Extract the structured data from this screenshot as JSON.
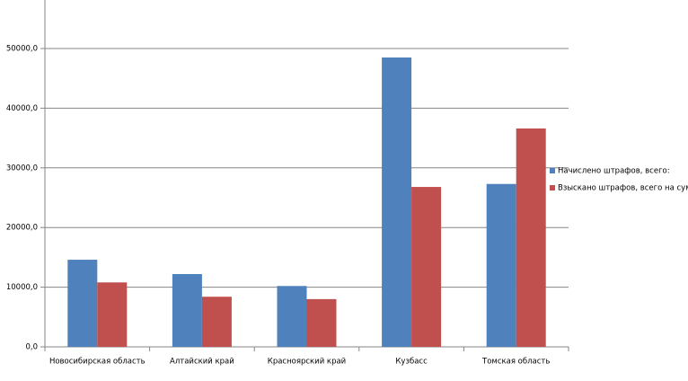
{
  "chart_data": {
    "type": "bar",
    "categories": [
      "Новосибирская область",
      "Алтайский край",
      "Красноярский край",
      "Кузбасс",
      "Томская область"
    ],
    "series": [
      {
        "name": "Начислено штрафов, всего:",
        "color": "#4f81bd",
        "values": [
          14600,
          12200,
          10200,
          48500,
          27300
        ]
      },
      {
        "name": "Взыскано штрафов, всего на сумму",
        "color": "#c0504d",
        "values": [
          10800,
          8400,
          8000,
          26800,
          36600
        ]
      }
    ],
    "ylim": [
      0,
      60000
    ],
    "yticks": [
      {
        "value": 0,
        "label": "0,0"
      },
      {
        "value": 10000,
        "label": "10000,0"
      },
      {
        "value": 20000,
        "label": "20000,0"
      },
      {
        "value": 30000,
        "label": "30000,0"
      },
      {
        "value": 40000,
        "label": "40000,0"
      },
      {
        "value": 50000,
        "label": "50000,0"
      }
    ],
    "grid": true,
    "legend": "right"
  }
}
